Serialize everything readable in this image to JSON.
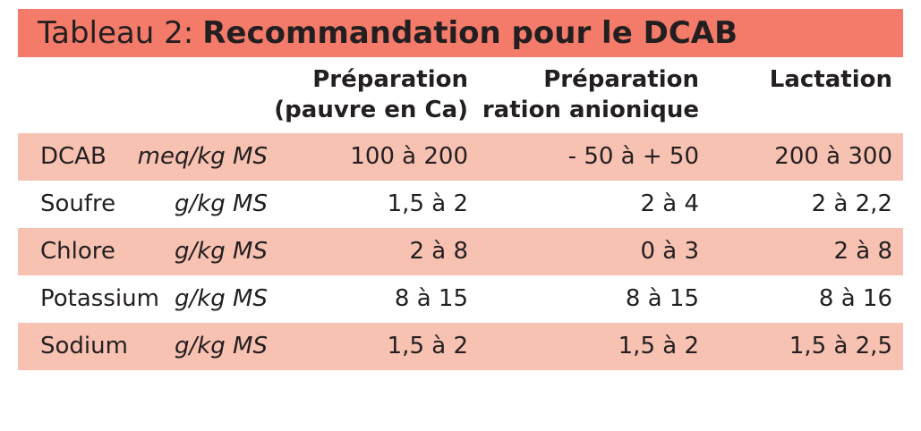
{
  "table": {
    "title_prefix": "Tableau 2:",
    "title_main": "Recommandation pour le DCAB",
    "colors": {
      "title_background": "#f47b6a",
      "shaded_row": "#f8c2b2",
      "text": "#231f20"
    },
    "columns": [
      {
        "line1": "Préparation",
        "line2": "(pauvre en Ca)"
      },
      {
        "line1": "Préparation",
        "line2": "ration anionique"
      },
      {
        "line1": "Lactation",
        "line2": ""
      }
    ],
    "rows": [
      {
        "name": "DCAB",
        "unit": "meq/kg MS",
        "values": [
          "100 à 200",
          "- 50 à + 50",
          "200 à 300"
        ],
        "shaded": true
      },
      {
        "name": "Soufre",
        "unit": "g/kg MS",
        "values": [
          "1,5 à 2",
          "2 à 4",
          "2 à 2,2"
        ],
        "shaded": false
      },
      {
        "name": "Chlore",
        "unit": "g/kg MS",
        "values": [
          "2 à 8",
          "0 à 3",
          "2 à 8"
        ],
        "shaded": true
      },
      {
        "name": "Potassium",
        "unit": "g/kg MS",
        "values": [
          "8 à 15",
          "8 à 15",
          "8 à 16"
        ],
        "shaded": false
      },
      {
        "name": "Sodium",
        "unit": "g/kg MS",
        "values": [
          "1,5 à 2",
          "1,5 à 2",
          "1,5 à 2,5"
        ],
        "shaded": true
      }
    ]
  }
}
